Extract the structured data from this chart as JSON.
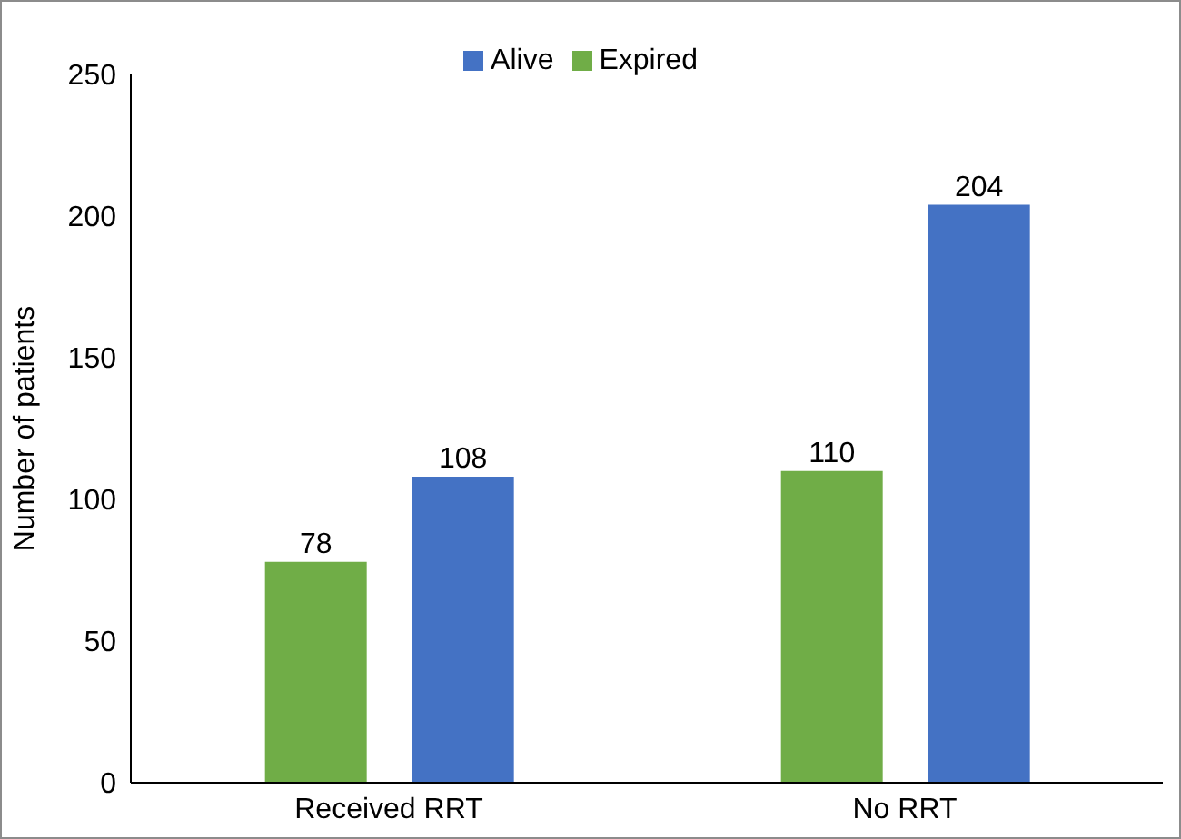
{
  "chart_data": {
    "type": "bar",
    "ylabel": "Number of patients",
    "categories": [
      "Received RRT",
      "No RRT"
    ],
    "series": [
      {
        "name": "Expired",
        "color": "#70ad47",
        "values": [
          78,
          110
        ]
      },
      {
        "name": "Alive",
        "color": "#4472c4",
        "values": [
          108,
          204
        ]
      }
    ],
    "ylim": [
      0,
      250
    ],
    "yticks": [
      0,
      50,
      100,
      150,
      200,
      250
    ],
    "grid": false,
    "legend": "top",
    "data_labels": true
  }
}
